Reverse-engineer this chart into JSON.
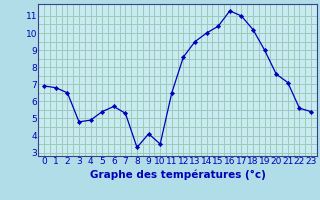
{
  "x": [
    0,
    1,
    2,
    3,
    4,
    5,
    6,
    7,
    8,
    9,
    10,
    11,
    12,
    13,
    14,
    15,
    16,
    17,
    18,
    19,
    20,
    21,
    22,
    23
  ],
  "y": [
    6.9,
    6.8,
    6.5,
    4.8,
    4.9,
    5.4,
    5.7,
    5.3,
    3.3,
    4.1,
    3.5,
    6.5,
    8.6,
    9.5,
    10.0,
    10.4,
    11.3,
    11.0,
    10.2,
    9.0,
    7.6,
    7.1,
    5.6,
    5.4
  ],
  "bg_color": "#b0dde8",
  "grid_color": "#99ccbb",
  "line_color": "#0000bb",
  "marker_color": "#0000bb",
  "xlabel": "Graphe des températures (°c)",
  "ylim": [
    2.8,
    11.7
  ],
  "yticks": [
    3,
    4,
    5,
    6,
    7,
    8,
    9,
    10,
    11
  ],
  "xticks": [
    0,
    1,
    2,
    3,
    4,
    5,
    6,
    7,
    8,
    9,
    10,
    11,
    12,
    13,
    14,
    15,
    16,
    17,
    18,
    19,
    20,
    21,
    22,
    23
  ],
  "axis_bg": "#c8eaf0",
  "xlabel_color": "#0000bb",
  "xlabel_fontsize": 7.5,
  "tick_fontsize": 6.5,
  "tick_color": "#0000bb",
  "spine_color": "#334488"
}
